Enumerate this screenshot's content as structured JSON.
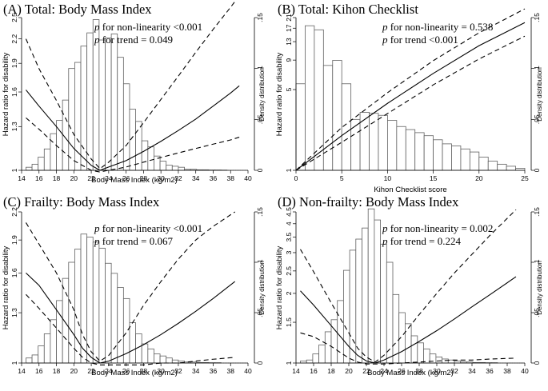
{
  "chart_data": [
    {
      "type": "bar",
      "title": "(A) Total: Body Mass Index",
      "xlabel": "Body Mass Index (kg/m2)",
      "ylabel": "Hazard ratio for disability",
      "y2label": "Density distribution",
      "annotations": [
        {
          "italic": "p",
          "text": " for non-linearity <0.001"
        },
        {
          "italic": "p",
          "text": " for trend = 0.049"
        }
      ],
      "xlim": [
        14,
        40
      ],
      "xticks": [
        14,
        16,
        18,
        20,
        22,
        24,
        26,
        28,
        30,
        32,
        34,
        36,
        38,
        40
      ],
      "ylim_log": [
        1,
        2.5
      ],
      "yticks": [
        "1",
        "1.3",
        "1.6",
        "1.9",
        "2.2",
        "2.5"
      ],
      "y2lim": [
        0,
        0.15
      ],
      "y2ticks": [
        "0",
        ".05",
        ".1",
        ".15"
      ],
      "histogram": {
        "bin_start": 14.5,
        "bin_width": 0.7,
        "density": [
          0.003,
          0.006,
          0.013,
          0.021,
          0.036,
          0.049,
          0.069,
          0.1,
          0.106,
          0.122,
          0.135,
          0.148,
          0.128,
          0.13,
          0.134,
          0.111,
          0.085,
          0.06,
          0.048,
          0.029,
          0.023,
          0.014,
          0.009,
          0.005,
          0.004,
          0.003,
          0.001,
          0.001,
          0.0005,
          0.0005,
          0.0003,
          0.0003,
          0.0002
        ]
      },
      "curves": {
        "x": [
          14.5,
          16,
          18,
          20,
          22,
          23,
          24,
          26,
          28,
          30,
          32,
          34,
          36,
          38,
          39
        ],
        "hr": [
          1.62,
          1.47,
          1.3,
          1.14,
          1.03,
          1.0,
          1.02,
          1.06,
          1.12,
          1.19,
          1.27,
          1.36,
          1.47,
          1.59,
          1.66
        ],
        "lower": [
          1.37,
          1.28,
          1.16,
          1.06,
          1.0,
          0.99,
          1.0,
          1.02,
          1.05,
          1.08,
          1.11,
          1.14,
          1.17,
          1.2,
          1.22
        ],
        "upper": [
          2.2,
          1.84,
          1.52,
          1.24,
          1.07,
          1.01,
          1.05,
          1.16,
          1.33,
          1.53,
          1.76,
          2.03,
          2.33,
          2.66,
          2.85
        ]
      }
    },
    {
      "type": "bar",
      "title": "(B) Total: Kihon Checklist",
      "xlabel": "Kihon Checklist score",
      "ylabel": "Hazard ratio for disability",
      "y2label": "Density distribution",
      "annotations": [
        {
          "italic": "p",
          "text": " for non-linearity = 0.538"
        },
        {
          "italic": "p",
          "text": " for trend <0.001"
        }
      ],
      "xlim": [
        0,
        25
      ],
      "xticks": [
        0,
        5,
        10,
        15,
        20,
        25
      ],
      "ylim_log": [
        1,
        21
      ],
      "yticks": [
        "1",
        "5",
        "9",
        "13",
        "17",
        "21"
      ],
      "y2lim": [
        0,
        0.15
      ],
      "y2ticks": [
        "0",
        ".05",
        ".1",
        ".15"
      ],
      "histogram": {
        "bin_start": 0,
        "bin_width": 1,
        "density": [
          0.085,
          0.142,
          0.138,
          0.103,
          0.108,
          0.085,
          0.05,
          0.057,
          0.056,
          0.054,
          0.049,
          0.043,
          0.04,
          0.037,
          0.034,
          0.03,
          0.026,
          0.024,
          0.021,
          0.018,
          0.013,
          0.009,
          0.006,
          0.004,
          0.002
        ]
      },
      "curves": {
        "x": [
          0,
          5,
          10,
          15,
          20,
          25
        ],
        "hr": [
          1.0,
          2.0,
          3.8,
          6.9,
          12.0,
          19.0
        ],
        "lower": [
          1.0,
          1.75,
          3.1,
          5.5,
          9.2,
          14.5
        ],
        "upper": [
          1.0,
          2.35,
          4.7,
          8.9,
          15.5,
          25.0
        ]
      }
    },
    {
      "type": "bar",
      "title": "(C) Frailty: Body Mass Index",
      "xlabel": "Body Mass Index (kg/m2)",
      "ylabel": "Hazard ratio for disability",
      "y2label": "Density distribution",
      "annotations": [
        {
          "italic": "p",
          "text": " for non-linearity <0.001"
        },
        {
          "italic": "p",
          "text": " for trend = 0.067"
        }
      ],
      "xlim": [
        14,
        40
      ],
      "xticks": [
        14,
        16,
        18,
        20,
        22,
        24,
        26,
        28,
        30,
        32,
        34,
        36,
        38,
        40
      ],
      "ylim_log": [
        1,
        2.2
      ],
      "yticks": [
        "1",
        "1.3",
        "1.6",
        "1.9",
        "2.2"
      ],
      "y2lim": [
        0,
        0.15
      ],
      "y2ticks": [
        "0",
        ".05",
        ".1",
        ".15"
      ],
      "histogram": {
        "bin_start": 14.5,
        "bin_width": 0.7,
        "density": [
          0.005,
          0.008,
          0.017,
          0.029,
          0.043,
          0.062,
          0.084,
          0.1,
          0.113,
          0.128,
          0.125,
          0.12,
          0.114,
          0.099,
          0.089,
          0.075,
          0.064,
          0.04,
          0.029,
          0.019,
          0.014,
          0.009,
          0.007,
          0.005,
          0.003,
          0.002,
          0.001,
          0.001,
          0.0005,
          0.0005,
          0.0003,
          0.0003
        ]
      },
      "curves": {
        "x": [
          14.5,
          16,
          18,
          20,
          21,
          22,
          23,
          24,
          26,
          28,
          30,
          32,
          34,
          36,
          38.5
        ],
        "hr": [
          1.6,
          1.5,
          1.32,
          1.16,
          1.08,
          1.03,
          1.0,
          1.01,
          1.05,
          1.1,
          1.16,
          1.23,
          1.31,
          1.4,
          1.53
        ],
        "lower": [
          1.43,
          1.33,
          1.2,
          1.08,
          1.03,
          1.0,
          0.99,
          0.99,
          0.99,
          0.99,
          1.0,
          1.0,
          1.01,
          1.02,
          1.03
        ],
        "upper": [
          2.08,
          1.86,
          1.6,
          1.32,
          1.16,
          1.06,
          1.01,
          1.04,
          1.17,
          1.35,
          1.53,
          1.72,
          1.9,
          2.04,
          2.2
        ]
      }
    },
    {
      "type": "bar",
      "title": "(D) Non-frailty: Body Mass Index",
      "xlabel": "Body Mass Index (kg/m2)",
      "ylabel": "Hazard ratio for disability",
      "y2label": "Density distribution",
      "annotations": [
        {
          "italic": "p",
          "text": " for non-linearity = 0.002"
        },
        {
          "italic": "p",
          "text": " for trend = 0.224"
        }
      ],
      "xlim": [
        14,
        40
      ],
      "xticks": [
        14,
        16,
        18,
        20,
        22,
        24,
        26,
        28,
        30,
        32,
        34,
        36,
        38,
        40
      ],
      "ylim_log": [
        1,
        4.5
      ],
      "yticks": [
        "1",
        "1.5",
        "2",
        "2.5",
        "3",
        "3.5",
        "4",
        "4.5"
      ],
      "y2lim": [
        0,
        0.15
      ],
      "y2ticks": [
        "0",
        ".05",
        ".1",
        ".15"
      ],
      "histogram": {
        "bin_start": 14.5,
        "bin_width": 0.7,
        "density": [
          0.002,
          0.003,
          0.009,
          0.018,
          0.031,
          0.043,
          0.062,
          0.092,
          0.112,
          0.123,
          0.134,
          0.153,
          0.142,
          0.118,
          0.1,
          0.068,
          0.05,
          0.039,
          0.027,
          0.02,
          0.014,
          0.009,
          0.006,
          0.004,
          0.003,
          0.002,
          0.001,
          0.001,
          0.0005,
          0.0005,
          0.0003,
          0.0003
        ]
      },
      "curves": {
        "x": [
          14.5,
          16,
          18,
          20,
          21,
          22,
          23,
          24,
          26,
          28,
          30,
          32,
          34,
          36,
          39
        ],
        "hr": [
          2.05,
          1.78,
          1.45,
          1.18,
          1.08,
          1.02,
          1.0,
          1.03,
          1.12,
          1.24,
          1.38,
          1.55,
          1.75,
          1.97,
          2.36
        ],
        "lower": [
          1.35,
          1.3,
          1.18,
          1.05,
          1.01,
          0.99,
          0.99,
          0.99,
          1.0,
          1.01,
          1.02,
          1.03,
          1.03,
          1.04,
          1.05
        ],
        "upper": [
          3.1,
          2.48,
          1.82,
          1.35,
          1.16,
          1.06,
          1.01,
          1.08,
          1.3,
          1.62,
          2.0,
          2.45,
          2.95,
          3.55,
          4.6
        ]
      }
    }
  ]
}
